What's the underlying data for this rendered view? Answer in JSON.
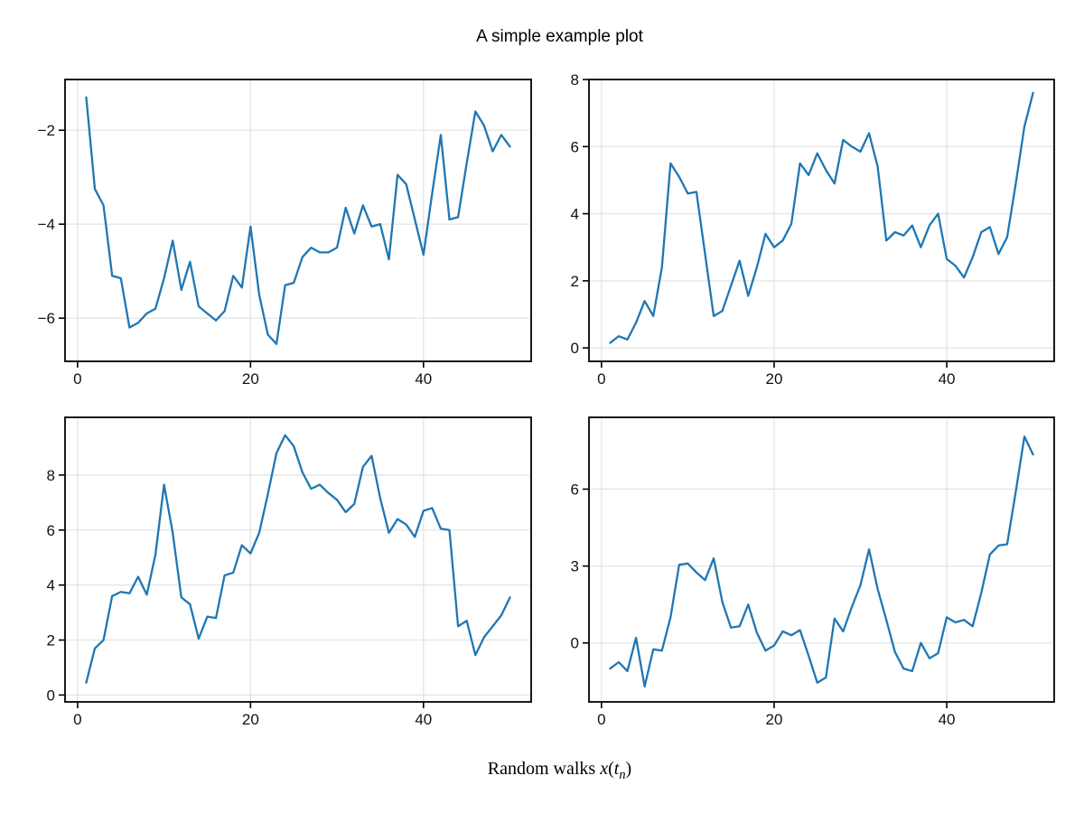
{
  "figure": {
    "title": "A simple example plot",
    "xlabel": {
      "prefix": "Random walks ",
      "var1": "x",
      "open": "(",
      "var2": "t",
      "sub": "n",
      "close": ")",
      "full_text": "Random walks x(tn)"
    }
  },
  "colors": {
    "line": "#1f77b4",
    "grid": "#e4e4e4",
    "spine": "#000000",
    "background": "#ffffff",
    "tick_label": "#111111"
  },
  "chart_data": [
    {
      "type": "line",
      "position": "top-left",
      "title": "",
      "xlabel": "",
      "ylabel": "",
      "grid": true,
      "legend": "none",
      "x_start": 1,
      "x_step": 1,
      "xticks": [
        0,
        20,
        40
      ],
      "yticks": [
        -6,
        -4,
        -2
      ],
      "xlim": [
        -1.45,
        52.45
      ],
      "ylim": [
        -6.92,
        -0.92
      ],
      "values": [
        -1.3,
        -3.25,
        -3.6,
        -5.1,
        -5.15,
        -6.2,
        -6.1,
        -5.9,
        -5.8,
        -5.15,
        -4.35,
        -5.4,
        -4.8,
        -5.75,
        -5.9,
        -6.05,
        -5.85,
        -5.1,
        -5.35,
        -4.05,
        -5.5,
        -6.35,
        -6.55,
        -5.3,
        -5.25,
        -4.7,
        -4.5,
        -4.6,
        -4.6,
        -4.5,
        -3.65,
        -4.2,
        -3.6,
        -4.05,
        -4.0,
        -4.75,
        -2.95,
        -3.15,
        -3.9,
        -4.65,
        -3.35,
        -2.1,
        -3.9,
        -3.85,
        -2.7,
        -1.6,
        -1.9,
        -2.45,
        -2.1,
        -2.35
      ]
    },
    {
      "type": "line",
      "position": "top-right",
      "title": "",
      "xlabel": "",
      "ylabel": "",
      "grid": true,
      "legend": "none",
      "x_start": 1,
      "x_step": 1,
      "xticks": [
        0,
        20,
        40
      ],
      "yticks": [
        0,
        2,
        4,
        6,
        8
      ],
      "xlim": [
        -1.45,
        52.45
      ],
      "ylim": [
        -0.4,
        8.0
      ],
      "values": [
        0.15,
        0.35,
        0.25,
        0.75,
        1.4,
        0.95,
        2.4,
        5.5,
        5.1,
        4.6,
        4.65,
        2.8,
        0.95,
        1.1,
        1.85,
        2.6,
        1.55,
        2.4,
        3.4,
        3.0,
        3.2,
        3.7,
        5.5,
        5.15,
        5.8,
        5.3,
        4.9,
        6.2,
        6.0,
        5.85,
        6.4,
        5.4,
        3.2,
        3.45,
        3.35,
        3.65,
        3.0,
        3.65,
        4.0,
        2.65,
        2.45,
        2.1,
        2.7,
        3.45,
        3.6,
        2.8,
        3.3,
        4.9,
        6.6,
        7.6
      ]
    },
    {
      "type": "line",
      "position": "bottom-left",
      "title": "",
      "xlabel": "",
      "ylabel": "",
      "grid": true,
      "legend": "none",
      "x_start": 1,
      "x_step": 1,
      "xticks": [
        0,
        20,
        40
      ],
      "yticks": [
        0,
        2,
        4,
        6,
        8
      ],
      "xlim": [
        -1.45,
        52.45
      ],
      "ylim": [
        -0.25,
        10.1
      ],
      "values": [
        0.45,
        1.7,
        2.0,
        3.6,
        3.75,
        3.7,
        4.3,
        3.65,
        5.1,
        7.65,
        5.9,
        3.55,
        3.3,
        2.05,
        2.85,
        2.8,
        4.35,
        4.45,
        5.45,
        5.15,
        5.9,
        7.3,
        8.8,
        9.45,
        9.05,
        8.1,
        7.5,
        7.65,
        7.35,
        7.1,
        6.65,
        6.95,
        8.3,
        8.7,
        7.15,
        5.9,
        6.4,
        6.2,
        5.75,
        6.7,
        6.8,
        6.05,
        6.0,
        2.5,
        2.7,
        1.45,
        2.1,
        2.5,
        2.9,
        3.55
      ]
    },
    {
      "type": "line",
      "position": "bottom-right",
      "title": "",
      "xlabel": "",
      "ylabel": "",
      "grid": true,
      "legend": "none",
      "x_start": 1,
      "x_step": 1,
      "xticks": [
        0,
        20,
        40
      ],
      "yticks": [
        0,
        3,
        6
      ],
      "xlim": [
        -1.45,
        52.45
      ],
      "ylim": [
        -2.3,
        8.8
      ],
      "values": [
        -1.0,
        -0.75,
        -1.1,
        0.2,
        -1.7,
        -0.25,
        -0.3,
        1.0,
        3.05,
        3.1,
        2.75,
        2.45,
        3.3,
        1.6,
        0.6,
        0.65,
        1.5,
        0.4,
        -0.3,
        -0.1,
        0.45,
        0.3,
        0.5,
        -0.5,
        -1.55,
        -1.35,
        0.95,
        0.45,
        1.4,
        2.25,
        3.65,
        2.1,
        0.9,
        -0.35,
        -1.0,
        -1.1,
        0.0,
        -0.6,
        -0.4,
        1.0,
        0.8,
        0.9,
        0.65,
        1.95,
        3.45,
        3.8,
        3.85,
        5.9,
        8.05,
        7.35
      ]
    }
  ]
}
